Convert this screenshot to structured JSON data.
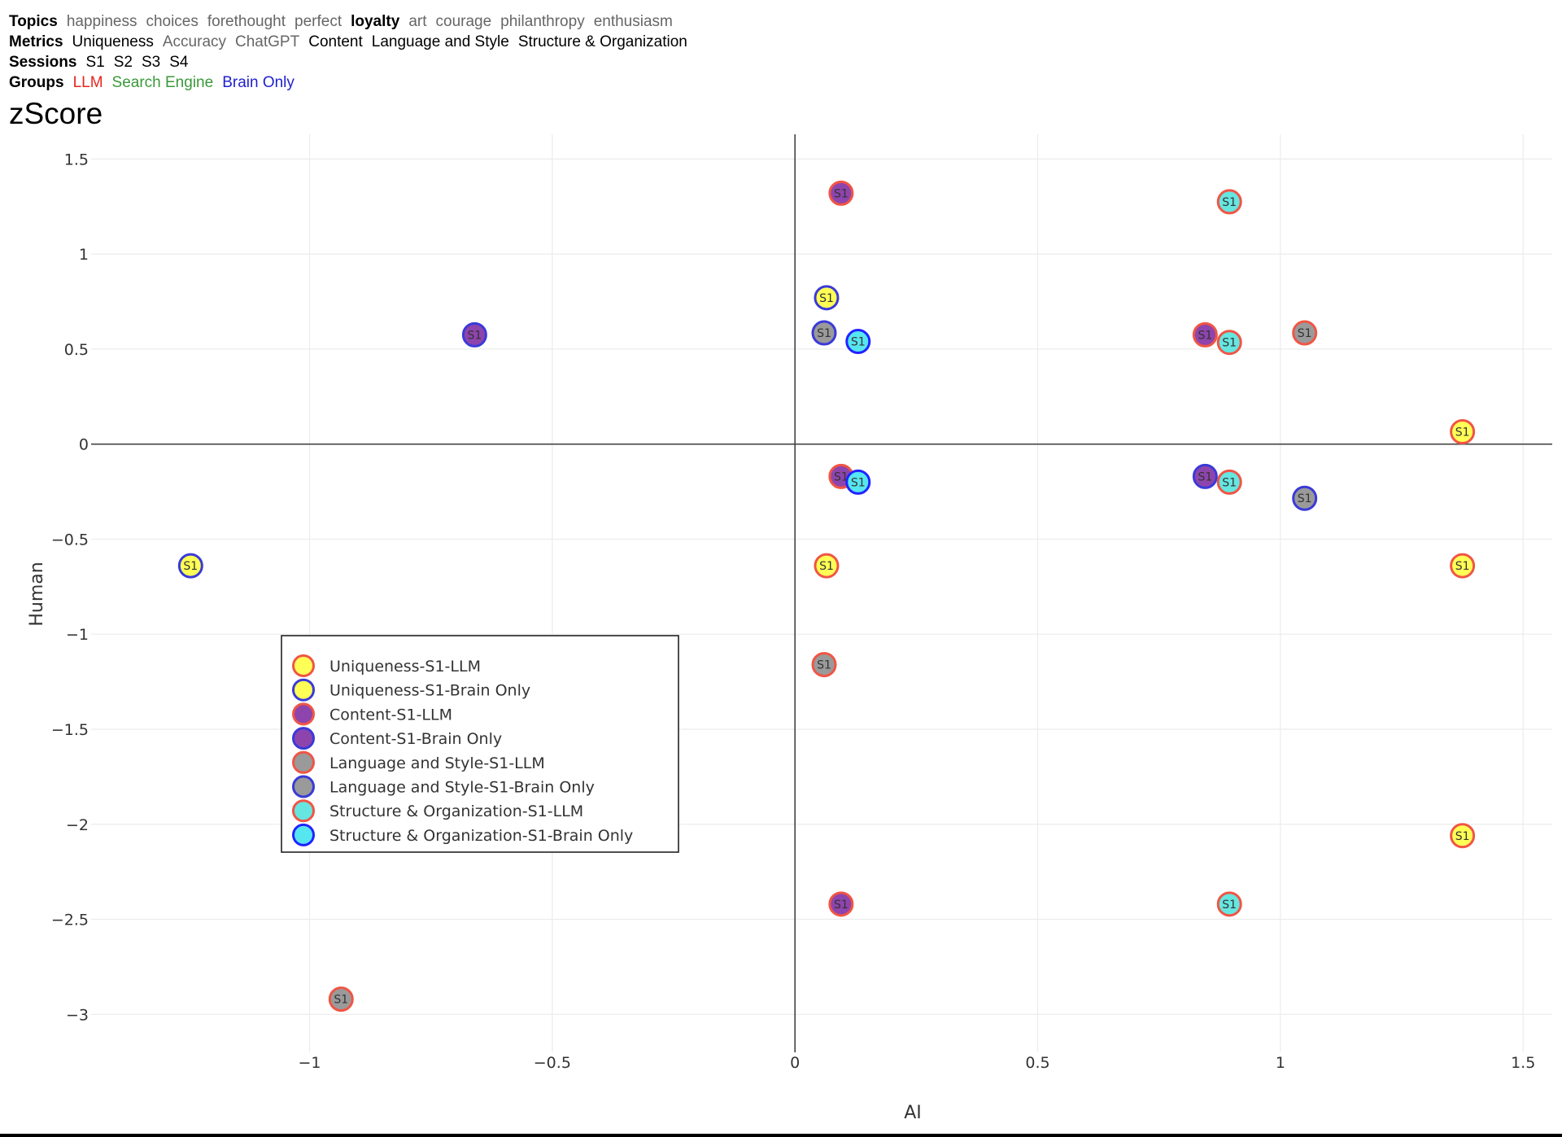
{
  "filters": {
    "topics": {
      "label": "Topics",
      "options": [
        {
          "text": "happiness",
          "state": "off"
        },
        {
          "text": "choices",
          "state": "off"
        },
        {
          "text": "forethought",
          "state": "off"
        },
        {
          "text": "perfect",
          "state": "off"
        },
        {
          "text": "loyalty",
          "state": "selected"
        },
        {
          "text": "art",
          "state": "off"
        },
        {
          "text": "courage",
          "state": "off"
        },
        {
          "text": "philanthropy",
          "state": "off"
        },
        {
          "text": "enthusiasm",
          "state": "off"
        }
      ]
    },
    "metrics": {
      "label": "Metrics",
      "options": [
        {
          "text": "Uniqueness",
          "state": "on"
        },
        {
          "text": "Accuracy",
          "state": "off"
        },
        {
          "text": "ChatGPT",
          "state": "off"
        },
        {
          "text": "Content",
          "state": "on"
        },
        {
          "text": "Language and Style",
          "state": "on"
        },
        {
          "text": "Structure & Organization",
          "state": "on"
        }
      ]
    },
    "sessions": {
      "label": "Sessions",
      "options": [
        {
          "text": "S1",
          "state": "on"
        },
        {
          "text": "S2",
          "state": "on"
        },
        {
          "text": "S3",
          "state": "on"
        },
        {
          "text": "S4",
          "state": "on"
        }
      ]
    },
    "groups": {
      "label": "Groups",
      "options": [
        {
          "text": "LLM",
          "state": "on",
          "color": "#e8261e"
        },
        {
          "text": "Search Engine",
          "state": "off",
          "color": "#3a9a3a"
        },
        {
          "text": "Brain Only",
          "state": "on",
          "color": "#1f1fd0"
        }
      ]
    }
  },
  "chart_title": "zScore",
  "chart_data": {
    "type": "scatter",
    "xlabel": "AI",
    "ylabel": "Human",
    "xlim": [
      -1.45,
      1.56
    ],
    "ylim": [
      -3.2,
      1.63
    ],
    "xticks": [
      -1,
      -0.5,
      0,
      0.5,
      1,
      1.5
    ],
    "xtick_labels": [
      "−1",
      "−0.5",
      "0",
      "0.5",
      "1",
      "1.5"
    ],
    "yticks": [
      1.5,
      1,
      0.5,
      0,
      -0.5,
      -1,
      -1.5,
      -2,
      -2.5,
      -3
    ],
    "ytick_labels": [
      "1.5",
      "1",
      "0.5",
      "0",
      "−0.5",
      "−1",
      "−1.5",
      "−2",
      "−2.5",
      "−3"
    ],
    "grid": true,
    "legend_position": "lower-left",
    "point_label": "S1",
    "series": [
      {
        "name": "Uniqueness-S1-LLM",
        "fill": "#ffff55",
        "stroke": "#f05545",
        "points": [
          {
            "x": 0.065,
            "y": -0.64
          },
          {
            "x": 1.375,
            "y": 0.065
          },
          {
            "x": 1.375,
            "y": -0.64
          },
          {
            "x": 1.375,
            "y": -2.06
          }
        ]
      },
      {
        "name": "Uniqueness-S1-Brain Only",
        "fill": "#ffff55",
        "stroke": "#3a3ad8",
        "points": [
          {
            "x": -1.245,
            "y": -0.64
          },
          {
            "x": 0.065,
            "y": 0.77
          }
        ]
      },
      {
        "name": "Content-S1-LLM",
        "fill": "#8e44ad",
        "stroke": "#f05545",
        "points": [
          {
            "x": 0.095,
            "y": 1.32
          },
          {
            "x": 0.095,
            "y": -0.17
          },
          {
            "x": 0.095,
            "y": -2.42
          },
          {
            "x": 0.845,
            "y": 0.575
          }
        ]
      },
      {
        "name": "Content-S1-Brain Only",
        "fill": "#8e44ad",
        "stroke": "#3a3ad8",
        "points": [
          {
            "x": -0.66,
            "y": 0.575
          },
          {
            "x": 0.845,
            "y": -0.17
          }
        ]
      },
      {
        "name": "Language and Style-S1-LLM",
        "fill": "#9a9a9a",
        "stroke": "#f05545",
        "points": [
          {
            "x": 0.06,
            "y": -1.16
          },
          {
            "x": -0.935,
            "y": -2.92
          },
          {
            "x": 1.05,
            "y": 0.585
          }
        ]
      },
      {
        "name": "Language and Style-S1-Brain Only",
        "fill": "#9a9a9a",
        "stroke": "#3a3ad8",
        "points": [
          {
            "x": 0.06,
            "y": 0.585
          },
          {
            "x": 1.05,
            "y": -0.285
          }
        ]
      },
      {
        "name": "Structure & Organization-S1-LLM",
        "fill": "#66e6e0",
        "stroke": "#f05545",
        "points": [
          {
            "x": 0.895,
            "y": 1.275
          },
          {
            "x": 0.895,
            "y": 0.535
          },
          {
            "x": 0.895,
            "y": -0.2
          },
          {
            "x": 0.895,
            "y": -2.42
          }
        ]
      },
      {
        "name": "Structure & Organization-S1-Brain Only",
        "fill": "#55e6f0",
        "stroke": "#2222ff",
        "points": [
          {
            "x": 0.13,
            "y": 0.54
          },
          {
            "x": 0.13,
            "y": -0.2
          }
        ]
      }
    ]
  }
}
